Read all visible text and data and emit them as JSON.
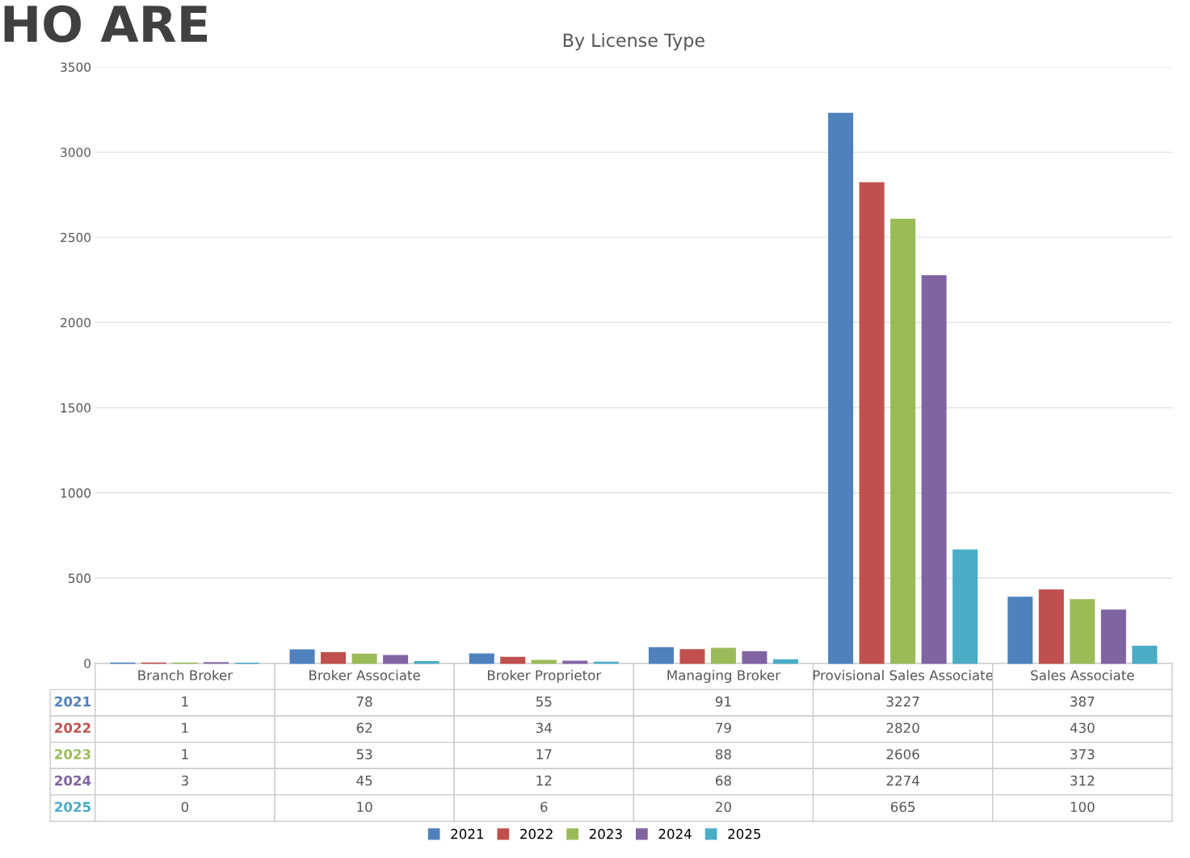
{
  "chart_data": {
    "type": "bar",
    "title": "By License Type",
    "annotations": [
      "HO ARE"
    ],
    "categories": [
      "Branch Broker",
      "Broker Associate",
      "Broker Proprietor",
      "Managing Broker",
      "Provisional Sales Associate",
      "Sales Associate"
    ],
    "series": [
      {
        "name": "2021",
        "color": "#4f81bd",
        "values": [
          1,
          78,
          55,
          91,
          3227,
          387
        ]
      },
      {
        "name": "2022",
        "color": "#c0504d",
        "values": [
          1,
          62,
          34,
          79,
          2820,
          430
        ]
      },
      {
        "name": "2023",
        "color": "#9bbb59",
        "values": [
          1,
          53,
          17,
          88,
          2606,
          373
        ]
      },
      {
        "name": "2024",
        "color": "#8064a2",
        "values": [
          3,
          45,
          12,
          68,
          2274,
          312
        ]
      },
      {
        "name": "2025",
        "color": "#4bacc6",
        "values": [
          0,
          10,
          6,
          20,
          665,
          100
        ]
      }
    ],
    "ylim": [
      0,
      3500
    ],
    "yticks": [
      0,
      500,
      1000,
      1500,
      2000,
      2500,
      3000,
      3500
    ],
    "grid": "y",
    "legend": "bottom",
    "data_labels": true
  }
}
